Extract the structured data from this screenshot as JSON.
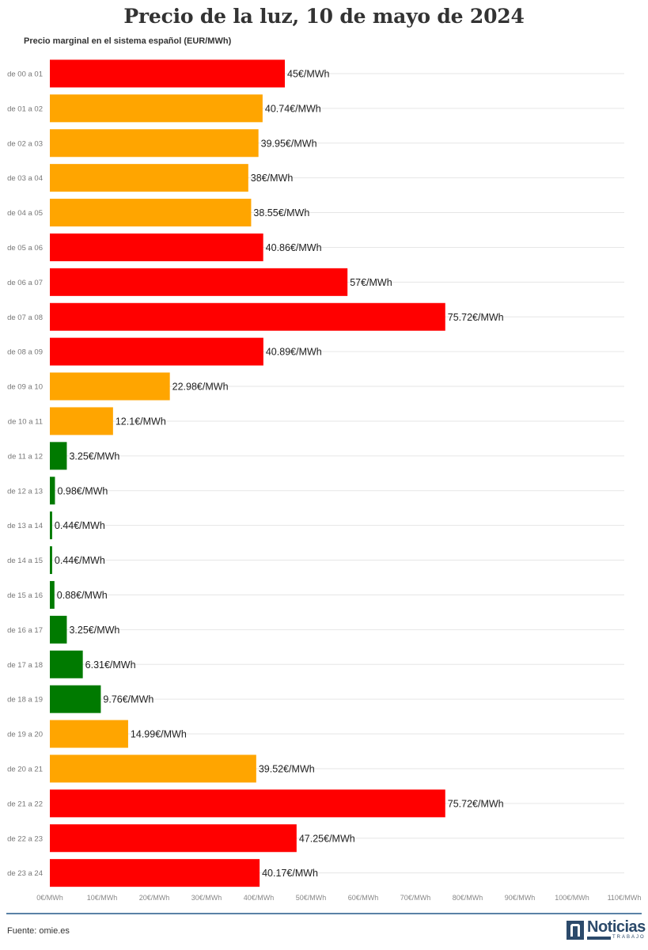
{
  "title": "Precio de la luz, 10 de mayo de 2024",
  "subtitle": "Precio marginal en el sistema español (EUR/MWh)",
  "source": "Fuente: omie.es",
  "logo": {
    "word": "Noticias",
    "sub": "TRABAJO"
  },
  "colors": {
    "high": "#ff0000",
    "mid": "#ffa500",
    "low": "#007a00",
    "grid": "#e6e6e6",
    "footer": "#5a82a6"
  },
  "chart_data": {
    "type": "bar",
    "orientation": "horizontal",
    "categories": [
      "de 00 a 01",
      "de 01 a 02",
      "de 02 a 03",
      "de 03 a 04",
      "de 04 a 05",
      "de 05 a 06",
      "de 06 a 07",
      "de 07 a 08",
      "de 08 a 09",
      "de 09 a 10",
      "de 10 a 11",
      "de 11 a 12",
      "de 12 a 13",
      "de 13 a 14",
      "de 14 a 15",
      "de 15 a 16",
      "de 16 a 17",
      "de 17 a 18",
      "de 18 a 19",
      "de 19 a 20",
      "de 20 a 21",
      "de 21 a 22",
      "de 22 a 23",
      "de 23 a 24"
    ],
    "values": [
      45,
      40.74,
      39.95,
      38,
      38.55,
      40.86,
      57,
      75.72,
      40.89,
      22.98,
      12.1,
      3.25,
      0.98,
      0.44,
      0.44,
      0.88,
      3.25,
      6.31,
      9.76,
      14.99,
      39.52,
      75.72,
      47.25,
      40.17
    ],
    "labels": [
      "45€/MWh",
      "40.74€/MWh",
      "39.95€/MWh",
      "38€/MWh",
      "38.55€/MWh",
      "40.86€/MWh",
      "57€/MWh",
      "75.72€/MWh",
      "40.89€/MWh",
      "22.98€/MWh",
      "12.1€/MWh",
      "3.25€/MWh",
      "0.98€/MWh",
      "0.44€/MWh",
      "0.44€/MWh",
      "0.88€/MWh",
      "3.25€/MWh",
      "6.31€/MWh",
      "9.76€/MWh",
      "14.99€/MWh",
      "39.52€/MWh",
      "75.72€/MWh",
      "47.25€/MWh",
      "40.17€/MWh"
    ],
    "levels": [
      "high",
      "mid",
      "mid",
      "mid",
      "mid",
      "high",
      "high",
      "high",
      "high",
      "mid",
      "mid",
      "low",
      "low",
      "low",
      "low",
      "low",
      "low",
      "low",
      "low",
      "mid",
      "mid",
      "high",
      "high",
      "high"
    ],
    "xlim": [
      0,
      110
    ],
    "xticks": [
      0,
      10,
      20,
      30,
      40,
      50,
      60,
      70,
      80,
      90,
      100,
      110
    ],
    "xtick_labels": [
      "0€/MWh",
      "10€/MWh",
      "20€/MWh",
      "30€/MWh",
      "40€/MWh",
      "50€/MWh",
      "60€/MWh",
      "70€/MWh",
      "80€/MWh",
      "90€/MWh",
      "100€/MWh",
      "110€/MWh"
    ],
    "grid": true
  }
}
